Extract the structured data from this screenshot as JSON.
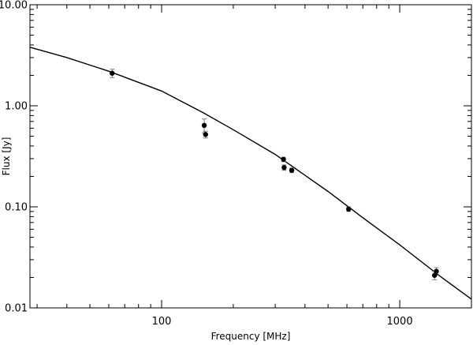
{
  "chart_data": {
    "type": "scatter",
    "title": "",
    "xlabel": "Frequency [MHz]",
    "ylabel": "Flux [Jy]",
    "xscale": "log",
    "yscale": "log",
    "xlim": [
      28,
      2000
    ],
    "ylim": [
      0.01,
      10
    ],
    "x_ticks": [
      {
        "value": 100,
        "label": "100"
      },
      {
        "value": 1000,
        "label": "1000"
      }
    ],
    "y_ticks": [
      {
        "value": 0.01,
        "label": "0.01"
      },
      {
        "value": 0.1,
        "label": "0.10"
      },
      {
        "value": 1,
        "label": "1.00"
      },
      {
        "value": 10,
        "label": "10.00"
      }
    ],
    "grid": false,
    "legend": "none",
    "colors": {
      "points": "#000000",
      "fit": "#000000",
      "errorbars": "#808080"
    },
    "points": [
      {
        "x": 62,
        "y": 2.1,
        "err": 0.2
      },
      {
        "x": 151,
        "y": 0.64,
        "err": 0.1
      },
      {
        "x": 153,
        "y": 0.52,
        "err": 0.04
      },
      {
        "x": 325,
        "y": 0.295,
        "err": 0.015
      },
      {
        "x": 327,
        "y": 0.245,
        "err": 0.015
      },
      {
        "x": 352,
        "y": 0.23,
        "err": 0.012
      },
      {
        "x": 610,
        "y": 0.095,
        "err": 0.005
      },
      {
        "x": 1400,
        "y": 0.021,
        "err": 0.002
      },
      {
        "x": 1425,
        "y": 0.023,
        "err": 0.002
      }
    ],
    "fit_curve": [
      {
        "x": 28,
        "y": 3.8
      },
      {
        "x": 40,
        "y": 3.0
      },
      {
        "x": 60,
        "y": 2.2
      },
      {
        "x": 100,
        "y": 1.4
      },
      {
        "x": 150,
        "y": 0.85
      },
      {
        "x": 200,
        "y": 0.58
      },
      {
        "x": 300,
        "y": 0.33
      },
      {
        "x": 500,
        "y": 0.142
      },
      {
        "x": 700,
        "y": 0.078
      },
      {
        "x": 1000,
        "y": 0.042
      },
      {
        "x": 1500,
        "y": 0.02
      },
      {
        "x": 2000,
        "y": 0.0122
      }
    ]
  }
}
